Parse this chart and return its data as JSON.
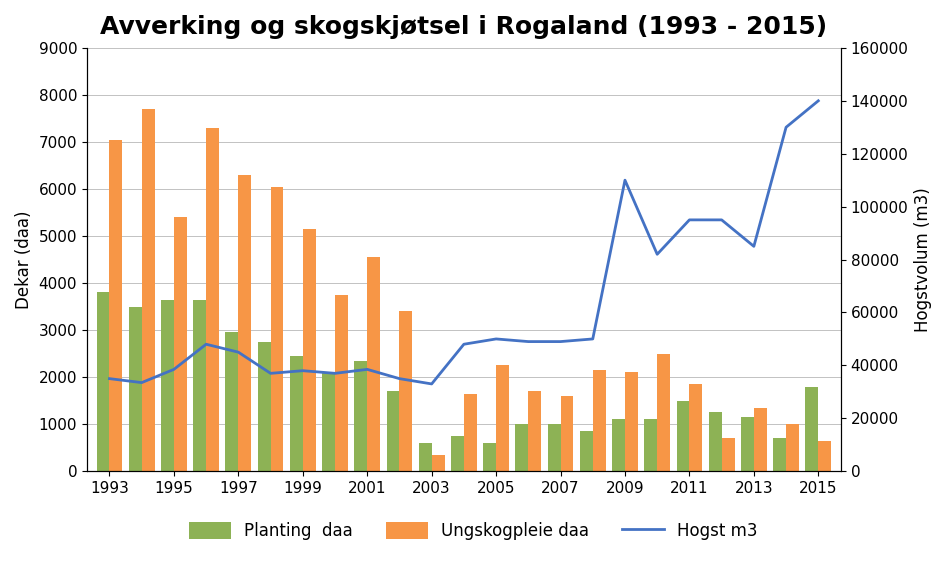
{
  "title": "Avverking og skogskjøtsel i Rogaland (1993 - 2015)",
  "years": [
    1993,
    1994,
    1995,
    1996,
    1997,
    1998,
    1999,
    2000,
    2001,
    2002,
    2003,
    2004,
    2005,
    2006,
    2007,
    2008,
    2009,
    2010,
    2011,
    2012,
    2013,
    2014,
    2015
  ],
  "planting": [
    3800,
    3500,
    3650,
    3650,
    2950,
    2750,
    2450,
    2100,
    2350,
    1700,
    600,
    750,
    600,
    1000,
    1000,
    850,
    1100,
    1100,
    1500,
    1250,
    1150,
    700,
    1800
  ],
  "ungskog": [
    7050,
    7700,
    5400,
    7300,
    6300,
    6050,
    5150,
    3750,
    4550,
    3400,
    350,
    1650,
    2250,
    1700,
    1600,
    2150,
    2100,
    2500,
    1850,
    700,
    1350,
    1000,
    650
  ],
  "hogst": [
    35000,
    33500,
    38500,
    48000,
    45000,
    37000,
    38000,
    37000,
    38500,
    35000,
    33000,
    48000,
    50000,
    49000,
    49000,
    50000,
    110000,
    82000,
    95000,
    95000,
    85000,
    130000,
    140000
  ],
  "ylabel_left": "Dekar (daa)",
  "ylabel_right": "Hogstvolum (m3)",
  "ylim_left": [
    0,
    9000
  ],
  "ylim_right": [
    0,
    160000
  ],
  "yticks_left": [
    0,
    1000,
    2000,
    3000,
    4000,
    5000,
    6000,
    7000,
    8000,
    9000
  ],
  "yticks_right": [
    0,
    20000,
    40000,
    60000,
    80000,
    100000,
    120000,
    140000,
    160000
  ],
  "bar_width": 0.4,
  "planting_color": "#8DB255",
  "ungskog_color": "#F79646",
  "hogst_color": "#4472C4",
  "legend_labels": [
    "Planting  daa",
    "Ungskogpleie daa",
    "Hogst m3"
  ],
  "title_fontsize": 18,
  "axis_label_fontsize": 12,
  "tick_fontsize": 11,
  "legend_fontsize": 12
}
